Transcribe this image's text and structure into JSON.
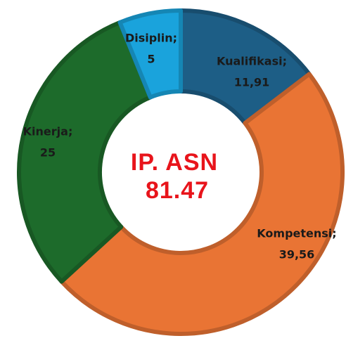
{
  "chart_data": {
    "type": "donut",
    "categories": [
      "Kualifikasi;",
      "Kompetensi;",
      "Kinerja;",
      "Disiplin;"
    ],
    "values": [
      11.91,
      39.56,
      25,
      5
    ],
    "value_labels": [
      "11,91",
      "39,56",
      "25",
      "5"
    ],
    "colors": [
      "#1d5e86",
      "#e97434",
      "#1d6b2b",
      "#1aa3dc"
    ],
    "center_title": "IP. ASN",
    "center_value": 81.47
  }
}
